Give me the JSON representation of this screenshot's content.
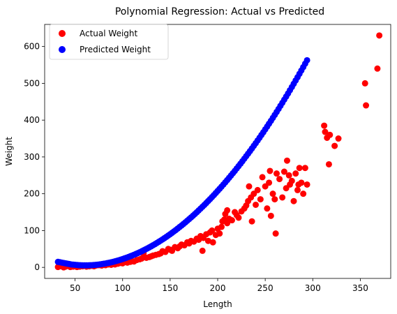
{
  "chart_data": {
    "type": "scatter",
    "title": "Polynomial Regression: Actual vs Predicted",
    "xlabel": "Length",
    "ylabel": "Weight",
    "xlim": [
      18,
      382
    ],
    "ylim": [
      -30,
      660
    ],
    "xticks": [
      50,
      100,
      150,
      200,
      250,
      300,
      350
    ],
    "yticks": [
      0,
      100,
      200,
      300,
      400,
      500,
      600
    ],
    "legend_position": "upper-left",
    "grid": false,
    "series": [
      {
        "name": "Actual Weight",
        "color": "#ff0000",
        "points": [
          [
            32,
            1
          ],
          [
            35,
            3
          ],
          [
            38,
            0
          ],
          [
            40,
            2
          ],
          [
            42,
            4
          ],
          [
            45,
            1
          ],
          [
            48,
            2
          ],
          [
            50,
            3
          ],
          [
            52,
            1
          ],
          [
            55,
            2
          ],
          [
            58,
            3
          ],
          [
            60,
            4
          ],
          [
            62,
            2
          ],
          [
            65,
            3
          ],
          [
            68,
            4
          ],
          [
            70,
            3
          ],
          [
            72,
            5
          ],
          [
            75,
            6
          ],
          [
            78,
            5
          ],
          [
            80,
            7
          ],
          [
            82,
            6
          ],
          [
            85,
            8
          ],
          [
            88,
            7
          ],
          [
            90,
            9
          ],
          [
            92,
            8
          ],
          [
            95,
            10
          ],
          [
            98,
            12
          ],
          [
            100,
            11
          ],
          [
            102,
            14
          ],
          [
            105,
            13
          ],
          [
            108,
            15
          ],
          [
            110,
            17
          ],
          [
            112,
            16
          ],
          [
            115,
            20
          ],
          [
            118,
            22
          ],
          [
            120,
            24
          ],
          [
            122,
            38
          ],
          [
            125,
            26
          ],
          [
            128,
            28
          ],
          [
            130,
            30
          ],
          [
            132,
            32
          ],
          [
            135,
            34
          ],
          [
            138,
            36
          ],
          [
            140,
            38
          ],
          [
            142,
            44
          ],
          [
            145,
            42
          ],
          [
            148,
            50
          ],
          [
            150,
            48
          ],
          [
            152,
            45
          ],
          [
            155,
            55
          ],
          [
            158,
            52
          ],
          [
            160,
            57
          ],
          [
            162,
            62
          ],
          [
            165,
            60
          ],
          [
            168,
            68
          ],
          [
            170,
            65
          ],
          [
            172,
            72
          ],
          [
            175,
            70
          ],
          [
            178,
            78
          ],
          [
            180,
            75
          ],
          [
            182,
            85
          ],
          [
            184,
            45
          ],
          [
            185,
            80
          ],
          [
            188,
            90
          ],
          [
            190,
            72
          ],
          [
            192,
            95
          ],
          [
            194,
            100
          ],
          [
            195,
            68
          ],
          [
            198,
            88
          ],
          [
            200,
            105
          ],
          [
            202,
            92
          ],
          [
            204,
            110
          ],
          [
            205,
            125
          ],
          [
            207,
            130
          ],
          [
            208,
            145
          ],
          [
            210,
            155
          ],
          [
            210,
            120
          ],
          [
            212,
            132
          ],
          [
            215,
            128
          ],
          [
            218,
            150
          ],
          [
            220,
            142
          ],
          [
            222,
            135
          ],
          [
            225,
            152
          ],
          [
            228,
            160
          ],
          [
            230,
            168
          ],
          [
            232,
            180
          ],
          [
            233,
            220
          ],
          [
            235,
            190
          ],
          [
            236,
            125
          ],
          [
            238,
            200
          ],
          [
            240,
            170
          ],
          [
            242,
            210
          ],
          [
            245,
            185
          ],
          [
            247,
            245
          ],
          [
            250,
            220
          ],
          [
            252,
            160
          ],
          [
            254,
            230
          ],
          [
            255,
            262
          ],
          [
            256,
            140
          ],
          [
            258,
            200
          ],
          [
            260,
            185
          ],
          [
            261,
            92
          ],
          [
            262,
            255
          ],
          [
            265,
            240
          ],
          [
            268,
            190
          ],
          [
            270,
            260
          ],
          [
            272,
            215
          ],
          [
            273,
            290
          ],
          [
            275,
            250
          ],
          [
            276,
            225
          ],
          [
            278,
            235
          ],
          [
            280,
            180
          ],
          [
            282,
            255
          ],
          [
            284,
            210
          ],
          [
            285,
            225
          ],
          [
            286,
            270
          ],
          [
            288,
            230
          ],
          [
            290,
            200
          ],
          [
            292,
            270
          ],
          [
            294,
            225
          ],
          [
            312,
            385
          ],
          [
            313,
            368
          ],
          [
            315,
            352
          ],
          [
            317,
            280
          ],
          [
            318,
            360
          ],
          [
            323,
            330
          ],
          [
            327,
            350
          ],
          [
            355,
            500
          ],
          [
            356,
            440
          ],
          [
            368,
            540
          ],
          [
            370,
            630
          ]
        ]
      },
      {
        "name": "Predicted Weight",
        "color": "#0000ff",
        "points": [
          [
            32,
            15
          ],
          [
            34,
            14
          ],
          [
            36,
            13
          ],
          [
            38,
            12
          ],
          [
            40,
            11
          ],
          [
            42,
            10
          ],
          [
            44,
            9
          ],
          [
            46,
            8
          ],
          [
            48,
            7.5
          ],
          [
            50,
            7
          ],
          [
            52,
            6.5
          ],
          [
            54,
            6
          ],
          [
            56,
            5.8
          ],
          [
            58,
            5.6
          ],
          [
            60,
            5.5
          ],
          [
            62,
            5.5
          ],
          [
            64,
            5.6
          ],
          [
            66,
            5.8
          ],
          [
            68,
            6
          ],
          [
            70,
            6.4
          ],
          [
            72,
            6.9
          ],
          [
            74,
            7.5
          ],
          [
            76,
            8.1
          ],
          [
            78,
            8.9
          ],
          [
            80,
            9.7
          ],
          [
            82,
            10.6
          ],
          [
            84,
            11.6
          ],
          [
            86,
            12.7
          ],
          [
            88,
            13.9
          ],
          [
            90,
            15.1
          ],
          [
            92,
            16.5
          ],
          [
            94,
            17.9
          ],
          [
            96,
            19.4
          ],
          [
            98,
            21
          ],
          [
            100,
            22.6
          ],
          [
            102,
            24.4
          ],
          [
            104,
            26.2
          ],
          [
            106,
            28.1
          ],
          [
            108,
            30.1
          ],
          [
            110,
            32.1
          ],
          [
            112,
            34.3
          ],
          [
            114,
            36.5
          ],
          [
            116,
            38.8
          ],
          [
            118,
            41.2
          ],
          [
            120,
            43.6
          ],
          [
            122,
            46.2
          ],
          [
            124,
            48.8
          ],
          [
            126,
            51.5
          ],
          [
            128,
            54.3
          ],
          [
            130,
            57.1
          ],
          [
            132,
            60.1
          ],
          [
            134,
            63.1
          ],
          [
            136,
            66.2
          ],
          [
            138,
            69.4
          ],
          [
            140,
            72.6
          ],
          [
            142,
            76
          ],
          [
            144,
            79.4
          ],
          [
            146,
            82.9
          ],
          [
            148,
            86.5
          ],
          [
            150,
            90.1
          ],
          [
            152,
            93.9
          ],
          [
            154,
            97.7
          ],
          [
            156,
            101.6
          ],
          [
            158,
            105.6
          ],
          [
            160,
            109.7
          ],
          [
            162,
            113.8
          ],
          [
            164,
            118
          ],
          [
            166,
            122.3
          ],
          [
            168,
            126.7
          ],
          [
            170,
            131.2
          ],
          [
            172,
            135.7
          ],
          [
            174,
            140.3
          ],
          [
            176,
            145
          ],
          [
            178,
            149.8
          ],
          [
            180,
            154.7
          ],
          [
            182,
            159.6
          ],
          [
            184,
            164.6
          ],
          [
            186,
            169.7
          ],
          [
            188,
            174.9
          ],
          [
            190,
            180.2
          ],
          [
            192,
            185.5
          ],
          [
            194,
            190.9
          ],
          [
            196,
            196.4
          ],
          [
            198,
            202
          ],
          [
            200,
            207.7
          ],
          [
            202,
            213.4
          ],
          [
            204,
            219.2
          ],
          [
            206,
            225.1
          ],
          [
            208,
            231.1
          ],
          [
            210,
            237.1
          ],
          [
            212,
            243.3
          ],
          [
            214,
            249.5
          ],
          [
            216,
            255.8
          ],
          [
            218,
            262.1
          ],
          [
            220,
            268.6
          ],
          [
            222,
            275.1
          ],
          [
            224,
            281.7
          ],
          [
            226,
            288.4
          ],
          [
            228,
            295.2
          ],
          [
            230,
            302
          ],
          [
            232,
            308.9
          ],
          [
            234,
            315.9
          ],
          [
            236,
            323
          ],
          [
            238,
            330.2
          ],
          [
            240,
            337.4
          ],
          [
            242,
            344.7
          ],
          [
            244,
            352.1
          ],
          [
            246,
            359.6
          ],
          [
            248,
            367.1
          ],
          [
            250,
            374.8
          ],
          [
            252,
            382.5
          ],
          [
            254,
            390.3
          ],
          [
            256,
            398.1
          ],
          [
            258,
            406.1
          ],
          [
            260,
            414.1
          ],
          [
            262,
            422.2
          ],
          [
            264,
            430.4
          ],
          [
            266,
            438.7
          ],
          [
            268,
            447
          ],
          [
            270,
            455.5
          ],
          [
            272,
            464
          ],
          [
            274,
            472.5
          ],
          [
            276,
            481.2
          ],
          [
            278,
            489.9
          ],
          [
            280,
            498.8
          ],
          [
            282,
            507.7
          ],
          [
            284,
            516.6
          ],
          [
            286,
            525.7
          ],
          [
            288,
            534.8
          ],
          [
            290,
            544
          ],
          [
            292,
            553.3
          ],
          [
            294,
            562.7
          ]
        ]
      }
    ]
  }
}
